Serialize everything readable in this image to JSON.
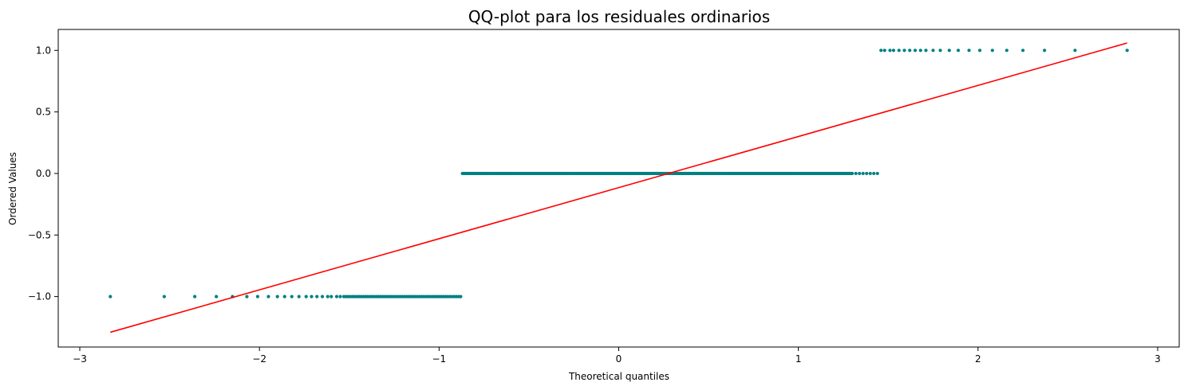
{
  "chart_data": {
    "type": "scatter",
    "title": "QQ-plot para los residuales ordinarios",
    "xlabel": "Theoretical quantiles",
    "ylabel": "Ordered Values",
    "xlim": [
      -3.12,
      3.12
    ],
    "ylim": [
      -1.41,
      1.17
    ],
    "xticks": [
      -3,
      -2,
      -1,
      0,
      1,
      2,
      3
    ],
    "xtick_labels": [
      "−3",
      "−2",
      "−1",
      "0",
      "1",
      "2",
      "3"
    ],
    "yticks": [
      -1.0,
      -0.5,
      0.0,
      0.5,
      1.0
    ],
    "ytick_labels": [
      "−1.0",
      "−0.5",
      "0.0",
      "0.5",
      "1.0"
    ],
    "grid": false,
    "series": [
      {
        "kind": "points",
        "color": "#008080",
        "groups": [
          {
            "y": -1.0,
            "x_sparse": [
              -2.83,
              -2.53,
              -2.36,
              -2.24,
              -2.15,
              -2.07,
              -2.01,
              -1.95,
              -1.9,
              -1.86,
              -1.82,
              -1.78,
              -1.74,
              -1.71,
              -1.68,
              -1.65,
              -1.62,
              -1.6,
              -1.57,
              -1.55
            ],
            "x_dense_from": -1.53,
            "x_dense_to": -0.88,
            "x_dense_count": 55
          },
          {
            "y": 0.0,
            "x_dense_from": -0.87,
            "x_dense_to": 1.3,
            "x_dense_count": 330,
            "x_sparse": [
              1.32,
              1.34,
              1.36,
              1.38,
              1.4,
              1.42,
              1.44
            ]
          },
          {
            "y": 1.0,
            "x_sparse": [
              1.46,
              1.48,
              1.51,
              1.53,
              1.56,
              1.59,
              1.62,
              1.65,
              1.68,
              1.71,
              1.75,
              1.79,
              1.84,
              1.89,
              1.95,
              2.01,
              2.08,
              2.16,
              2.25,
              2.37,
              2.54,
              2.83
            ]
          }
        ]
      },
      {
        "kind": "line",
        "color": "#ff0000",
        "x": [
          -2.83,
          2.83
        ],
        "y": [
          -1.29,
          1.06
        ]
      }
    ]
  }
}
